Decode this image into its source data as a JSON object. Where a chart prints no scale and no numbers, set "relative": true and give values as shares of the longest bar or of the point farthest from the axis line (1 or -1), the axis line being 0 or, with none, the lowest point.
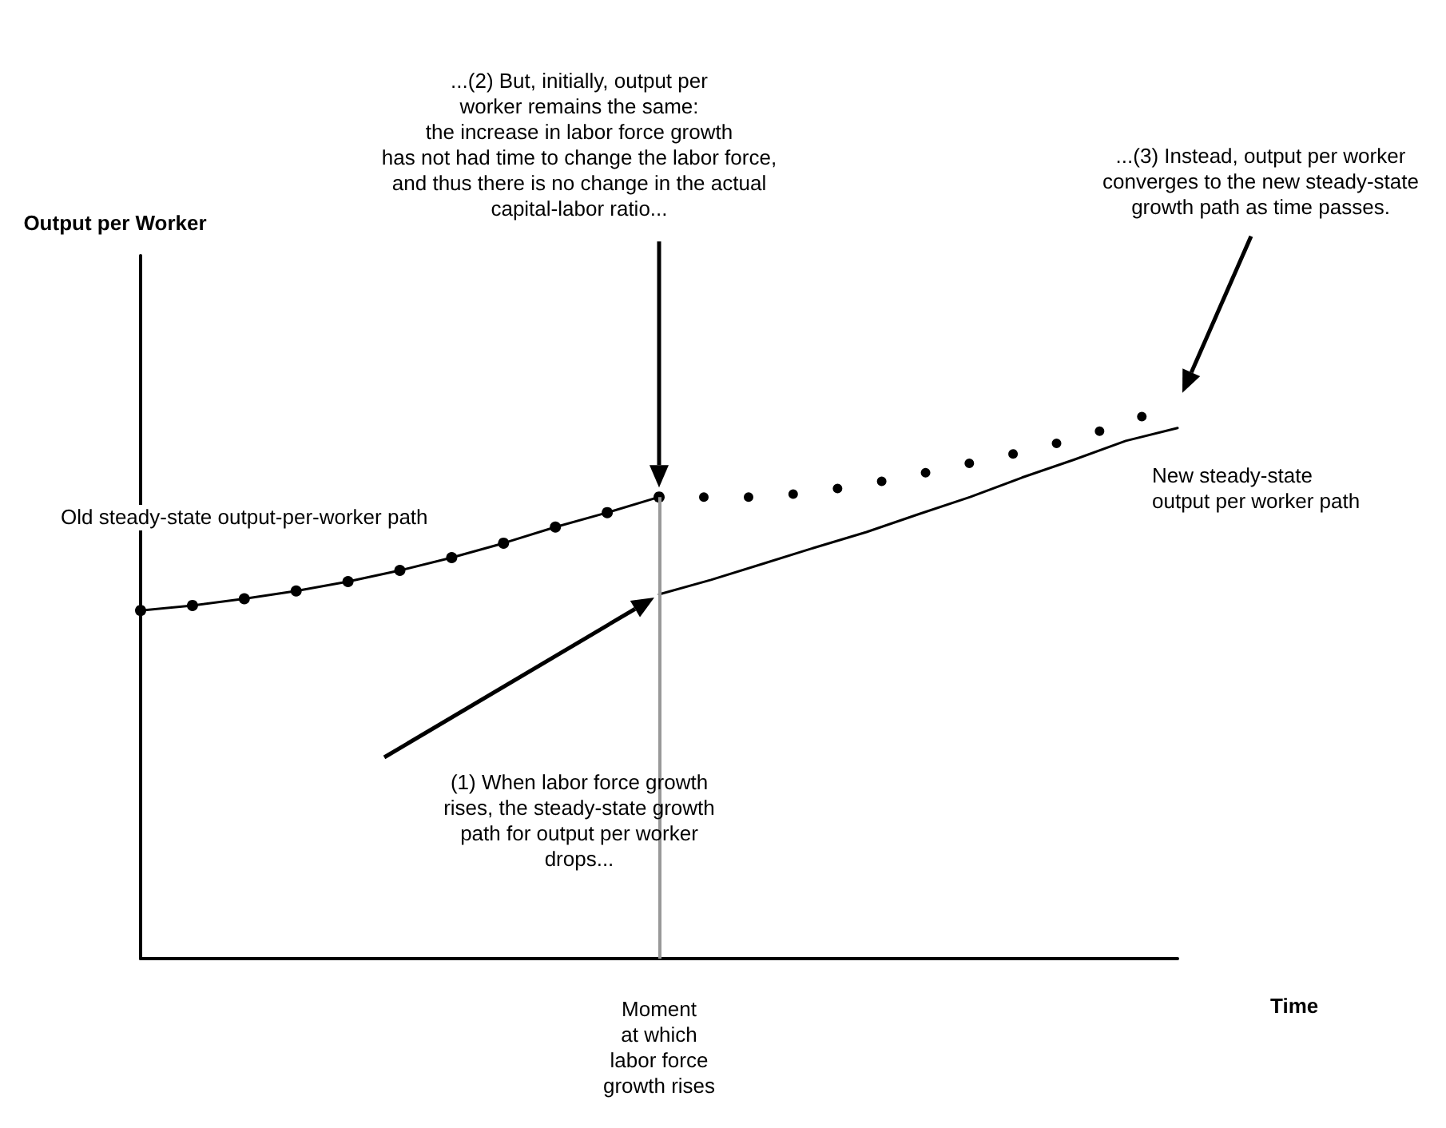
{
  "chart_data": {
    "type": "line",
    "relative": true,
    "xlabel": "Time",
    "legend": false,
    "grid": false,
    "categories": [
      null,
      null,
      null,
      null,
      null,
      null,
      null,
      null,
      null,
      null,
      null,
      null,
      null,
      null,
      null,
      null,
      null,
      null,
      null,
      null,
      null
    ],
    "series": [
      {
        "name": "Old steady-state output-per-worker path",
        "color": "#000000",
        "marker": "circle",
        "line_style": "solid",
        "values": [
          0.626,
          0.635,
          0.647,
          0.661,
          0.678,
          0.698,
          0.721,
          0.747,
          0.776,
          0.802,
          0.83,
          null,
          null,
          null,
          null,
          null,
          null,
          null,
          null,
          null,
          null
        ]
      },
      {
        "color": "#000000",
        "marker": "none",
        "line_style": "dotted",
        "values": [
          null,
          null,
          null,
          null,
          null,
          null,
          null,
          null,
          null,
          null,
          0.83,
          0.83,
          0.83,
          0.839,
          0.853,
          0.871,
          0.891,
          0.911,
          0.934,
          0.963,
          1.0
        ]
      },
      {
        "name": "New steady-state\noutput per worker path",
        "color": "#000000",
        "marker": "none",
        "line_style": "solid",
        "values": [
          null,
          null,
          null,
          null,
          null,
          null,
          null,
          null,
          null,
          null,
          0.655,
          0.681,
          0.71,
          0.739,
          0.767,
          0.799,
          0.83,
          0.865,
          0.897,
          0.931,
          0.954
        ]
      }
    ],
    "annotations": [
      "Moment\nat which\nlabor force\ngrowth rises",
      "(1) When labor force growth\nrises, the steady-state growth\npath for output per worker\ndrops...",
      "...(2) But, initially, output per\nworker remains the same:\nthe increase in labor force growth\nhas not had time to change the labor force,\nand thus there is no change in the actual\ncapital-labor ratio...",
      "...(3) Instead, output per worker\nconverges to the new steady-state\ngrowth path as time passes.",
      "Output per Worker"
    ]
  }
}
